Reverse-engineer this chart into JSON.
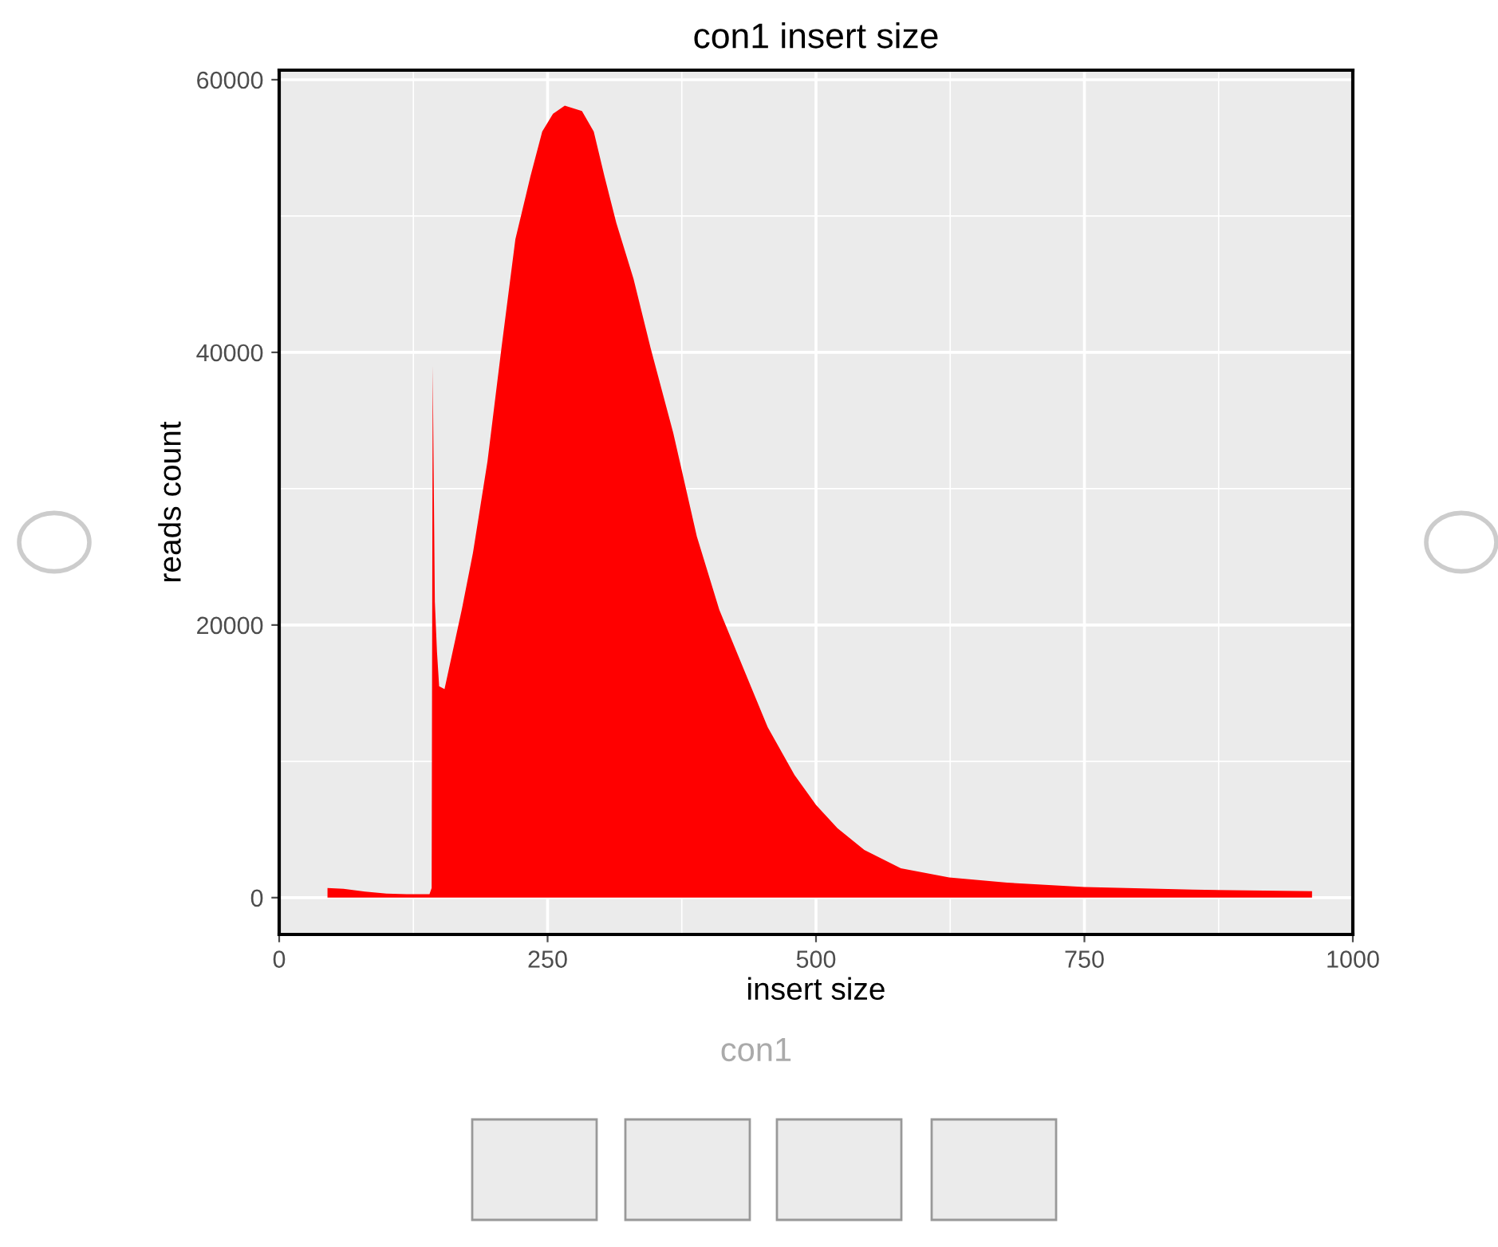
{
  "chart_data": {
    "type": "area",
    "title": "con1 insert size",
    "xlabel": "insert size",
    "ylabel": "reads count",
    "x": [
      45,
      60,
      80,
      100,
      120,
      140,
      142,
      143,
      145,
      147,
      149,
      154,
      170,
      180.5,
      194,
      207,
      220,
      234,
      245,
      255,
      266,
      282,
      293,
      303,
      314,
      330,
      346,
      367,
      389,
      410,
      432,
      455,
      480,
      500,
      520,
      545,
      579,
      624,
      678,
      750,
      851,
      962
    ],
    "series": [
      {
        "color": "#ff0000",
        "values": [
          700,
          650,
          450,
          300,
          250,
          250,
          700,
          39000,
          21700,
          18000,
          15500,
          15300,
          21100,
          25300,
          32000,
          40300,
          48300,
          52900,
          56200,
          57500,
          58100,
          57700,
          56200,
          52900,
          49500,
          45400,
          40300,
          34100,
          26500,
          21100,
          16900,
          12500,
          9000,
          6800,
          5100,
          3500,
          2150,
          1480,
          1100,
          780,
          590,
          470
        ]
      }
    ],
    "xlim": [
      0,
      1000
    ],
    "ylim": [
      -2700,
      60700
    ],
    "xticks": [
      0,
      250,
      500,
      750,
      1000
    ],
    "yticks": [
      0,
      20000,
      40000,
      60000
    ],
    "grid": true,
    "annotations": [
      "con1"
    ]
  }
}
